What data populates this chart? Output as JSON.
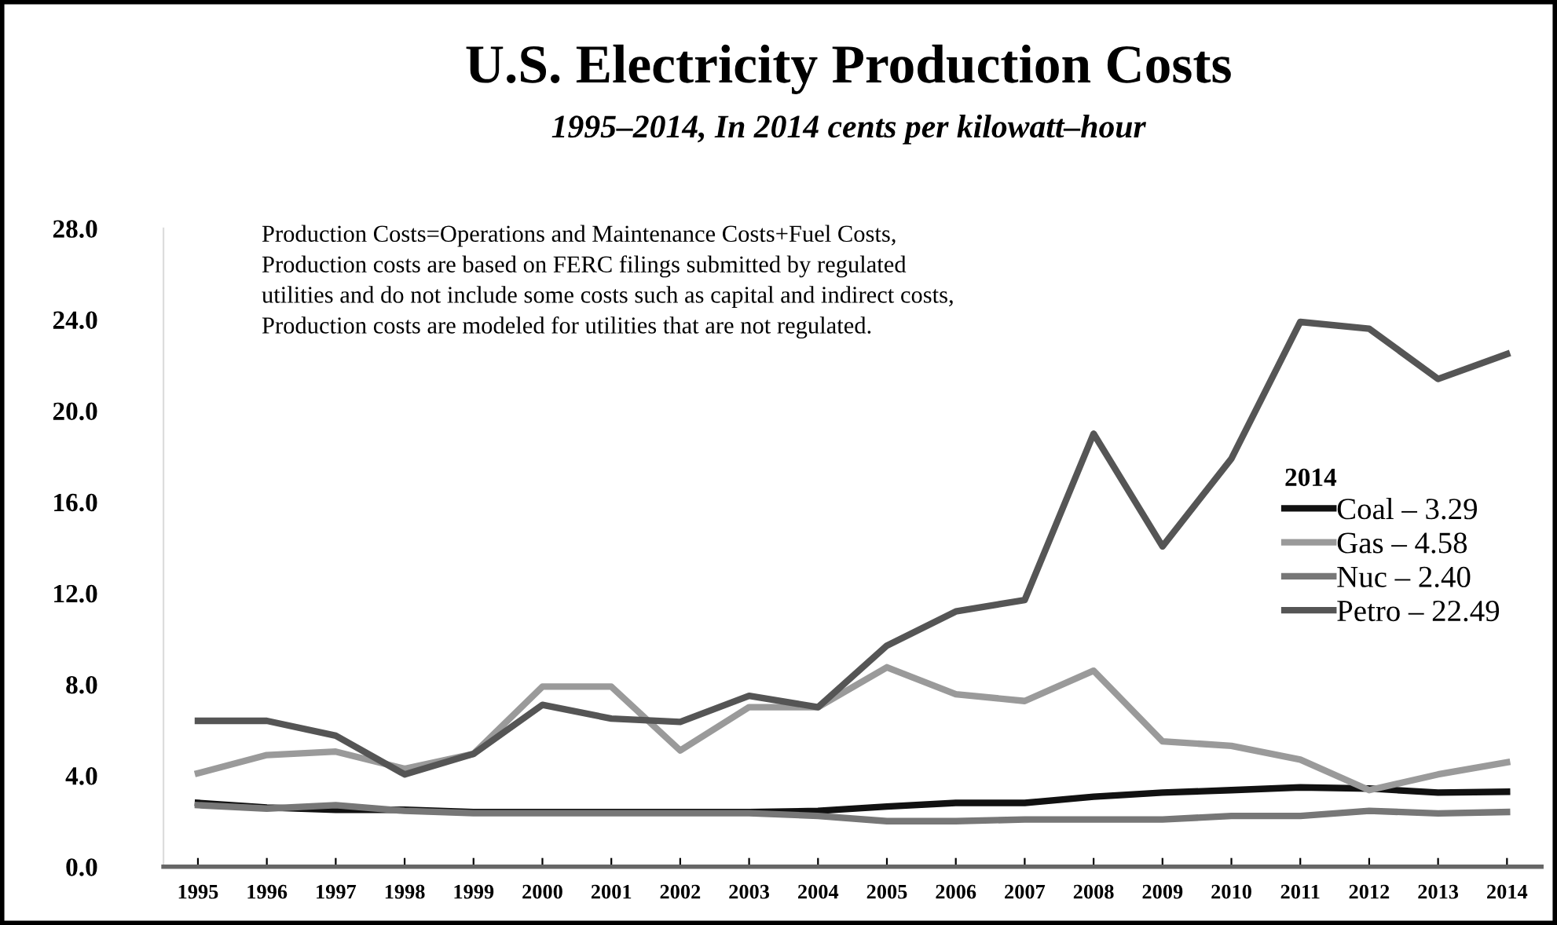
{
  "chart_data": {
    "type": "line",
    "title": "U.S. Electricity Production Costs",
    "subtitle": "1995–2014, In 2014 cents per kilowatt–hour",
    "annotations": [
      "Production Costs=Operations and Maintenance Costs+Fuel Costs,",
      "Production costs are based on FERC filings submitted by regulated",
      "utilities and do not include some costs such as capital and indirect costs,",
      "Production costs are modeled for utilities that are not regulated."
    ],
    "categories": [
      "1995",
      "1996",
      "1997",
      "1998",
      "1999",
      "2000",
      "2001",
      "2002",
      "2003",
      "2004",
      "2005",
      "2006",
      "2007",
      "2008",
      "2009",
      "2010",
      "2011",
      "2012",
      "2013",
      "2014"
    ],
    "series": [
      {
        "name": "Coal – 3.29",
        "color": "#111111",
        "values": [
          2.8,
          2.6,
          2.5,
          2.5,
          2.4,
          2.4,
          2.4,
          2.4,
          2.4,
          2.45,
          2.64,
          2.8,
          2.8,
          3.07,
          3.25,
          3.36,
          3.48,
          3.43,
          3.25,
          3.29
        ]
      },
      {
        "name": "Gas – 4.58",
        "color": "#9a9a9a",
        "values": [
          4.1,
          4.9,
          5.05,
          4.3,
          4.95,
          7.9,
          7.9,
          5.1,
          7.0,
          7.0,
          8.75,
          7.57,
          7.27,
          8.6,
          5.5,
          5.3,
          4.7,
          3.36,
          4.05,
          4.58
        ]
      },
      {
        "name": "Nuc – 2.40",
        "color": "#777777",
        "values": [
          2.7,
          2.55,
          2.7,
          2.45,
          2.35,
          2.35,
          2.35,
          2.35,
          2.35,
          2.23,
          2.0,
          2.0,
          2.07,
          2.07,
          2.07,
          2.23,
          2.23,
          2.45,
          2.34,
          2.4
        ]
      },
      {
        "name": "Petro – 22.49",
        "color": "#555555",
        "values": [
          6.4,
          6.4,
          5.75,
          4.05,
          4.95,
          7.1,
          6.5,
          6.35,
          7.5,
          7.0,
          9.7,
          11.2,
          11.7,
          19.0,
          14.05,
          17.9,
          23.9,
          23.6,
          21.4,
          22.49
        ]
      }
    ],
    "legend_title": "2014",
    "legend": "right",
    "ylim": [
      0,
      28
    ],
    "yticks": [
      {
        "value": 0,
        "label": "0.0"
      },
      {
        "value": 4,
        "label": "4.0"
      },
      {
        "value": 8,
        "label": "8.0"
      },
      {
        "value": 12,
        "label": "12.0"
      },
      {
        "value": 16,
        "label": "16.0"
      },
      {
        "value": 20,
        "label": "20.0"
      },
      {
        "value": 24,
        "label": "24.0"
      },
      {
        "value": 28,
        "label": "28.0"
      }
    ],
    "grid": false
  }
}
